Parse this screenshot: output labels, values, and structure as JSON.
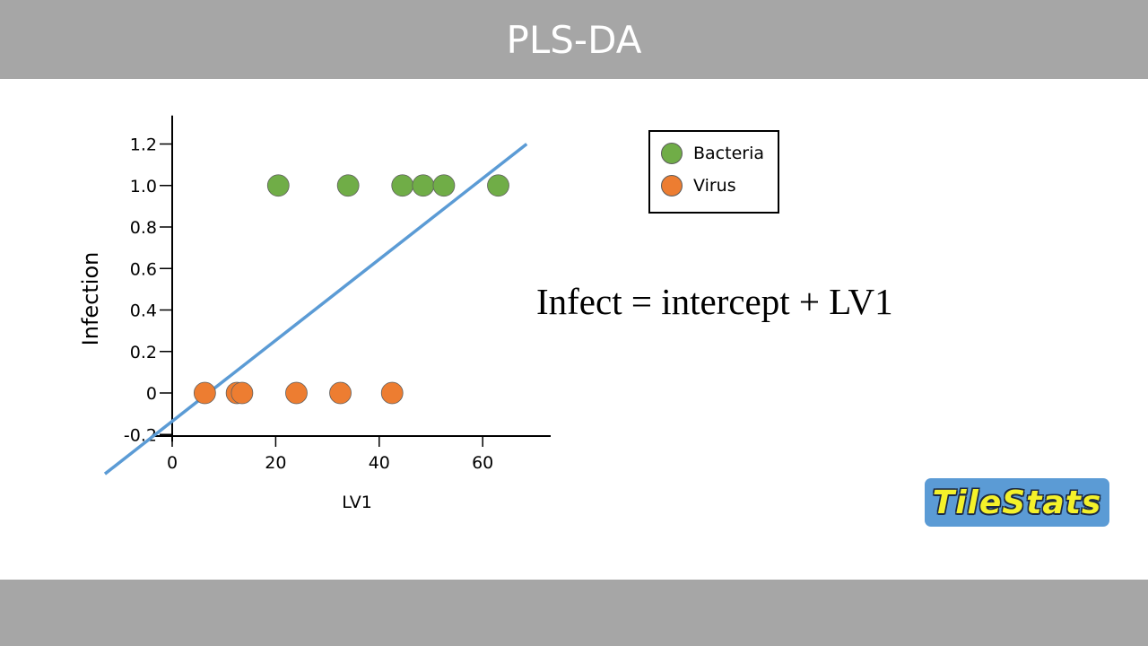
{
  "slide": {
    "title": "PLS-DA",
    "equation": "Infect = intercept + LV1"
  },
  "logo": {
    "text": "TileStats",
    "background": "#5b9bd5",
    "text_color": "#f4f12a"
  },
  "chart_data": {
    "type": "scatter",
    "xlabel": "LV1",
    "ylabel": "Infection",
    "xlim": [
      -13,
      73
    ],
    "ylim": [
      -0.23,
      1.32
    ],
    "xticks": [
      0,
      20,
      40,
      60
    ],
    "yticks": [
      {
        "value": -0.2,
        "label": "-0.2"
      },
      {
        "value": 0,
        "label": "0"
      },
      {
        "value": 0.2,
        "label": "0.2"
      },
      {
        "value": 0.4,
        "label": "0.4"
      },
      {
        "value": 0.6,
        "label": "0.6"
      },
      {
        "value": 0.8,
        "label": "0.8"
      },
      {
        "value": 1.0,
        "label": "1.0"
      },
      {
        "value": 1.2,
        "label": "1.2"
      }
    ],
    "grid": false,
    "legend_position": "top-right",
    "series": [
      {
        "name": "Bacteria",
        "color": "#70ad47",
        "points": [
          {
            "x": 20.5,
            "y": 1.0
          },
          {
            "x": 34,
            "y": 1.0
          },
          {
            "x": 44.5,
            "y": 1.0
          },
          {
            "x": 48.5,
            "y": 1.0
          },
          {
            "x": 52.5,
            "y": 1.0
          },
          {
            "x": 63,
            "y": 1.0
          }
        ]
      },
      {
        "name": "Virus",
        "color": "#ed7d31",
        "points": [
          {
            "x": 6.3,
            "y": 0.0
          },
          {
            "x": 12.5,
            "y": 0.0
          },
          {
            "x": 13.5,
            "y": 0.0
          },
          {
            "x": 24,
            "y": 0.0
          },
          {
            "x": 32.5,
            "y": 0.0
          },
          {
            "x": 42.5,
            "y": 0.0
          }
        ]
      }
    ],
    "regression_line": {
      "color": "#5b9bd5",
      "from": {
        "x": -13,
        "y": -0.39
      },
      "to": {
        "x": 68.5,
        "y": 1.2
      }
    }
  }
}
